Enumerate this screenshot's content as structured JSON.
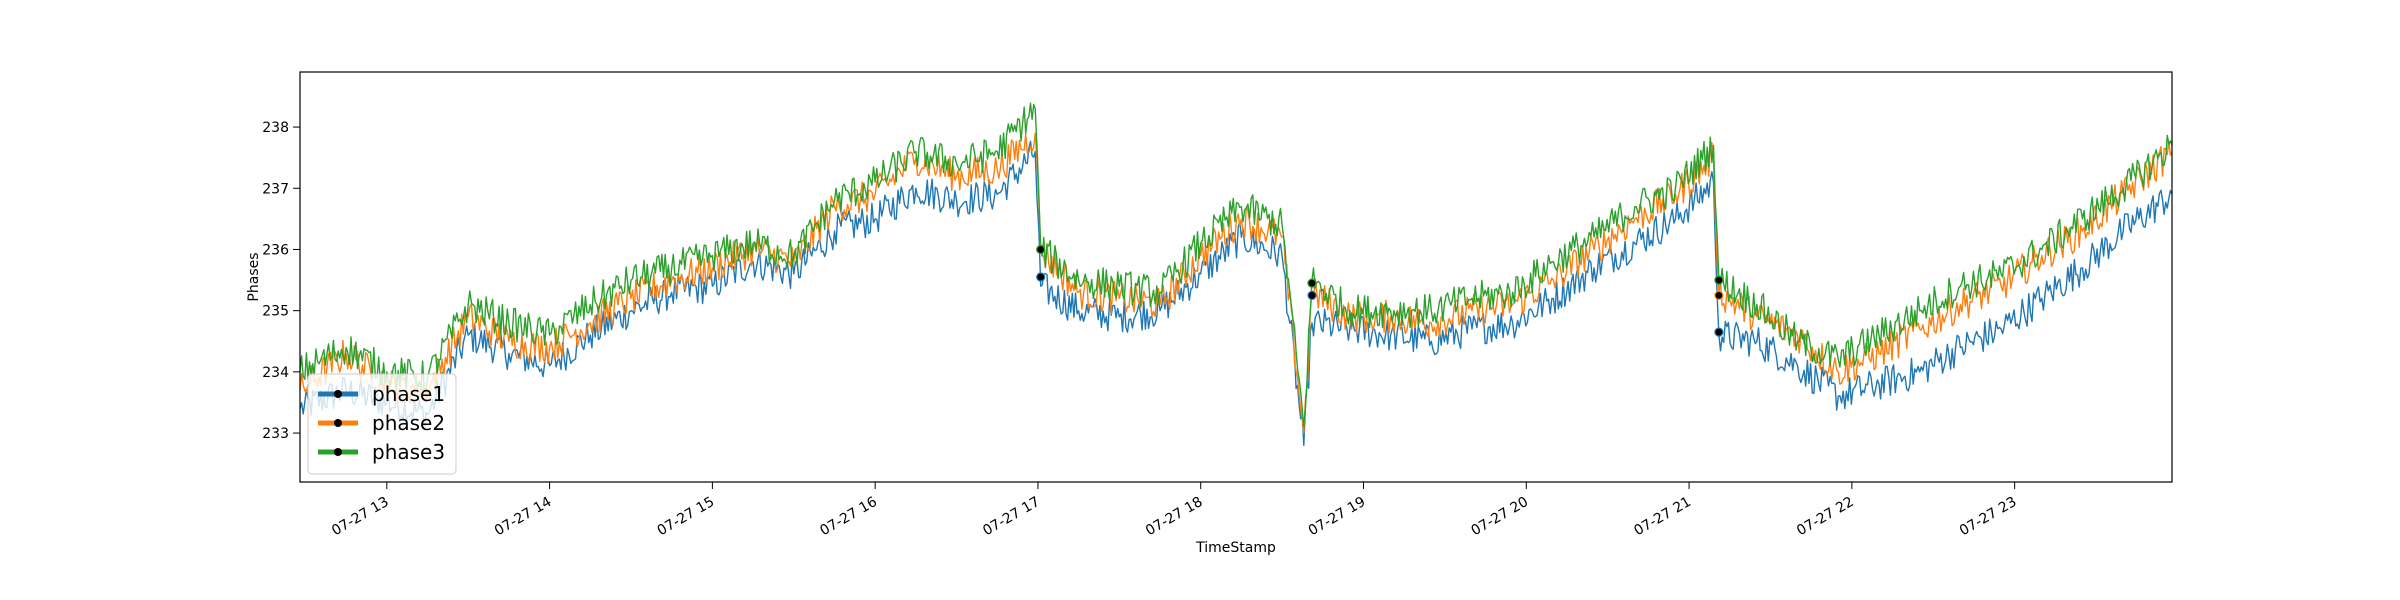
{
  "chart_data": {
    "type": "line",
    "title": "",
    "xlabel": "TimeStamp",
    "ylabel": "Phases",
    "xlim": [
      "2024-07-27 12:28",
      "2024-07-27 23:58"
    ],
    "ylim": [
      232.2,
      238.9
    ],
    "yticks": [
      233,
      234,
      235,
      236,
      237,
      238
    ],
    "xticks": [
      {
        "t": "2024-07-27 13:00",
        "label": "07-27 13"
      },
      {
        "t": "2024-07-27 14:00",
        "label": "07-27 14"
      },
      {
        "t": "2024-07-27 15:00",
        "label": "07-27 15"
      },
      {
        "t": "2024-07-27 16:00",
        "label": "07-27 16"
      },
      {
        "t": "2024-07-27 17:00",
        "label": "07-27 17"
      },
      {
        "t": "2024-07-27 18:00",
        "label": "07-27 18"
      },
      {
        "t": "2024-07-27 19:00",
        "label": "07-27 19"
      },
      {
        "t": "2024-07-27 20:00",
        "label": "07-27 20"
      },
      {
        "t": "2024-07-27 21:00",
        "label": "07-27 21"
      },
      {
        "t": "2024-07-27 22:00",
        "label": "07-27 22"
      },
      {
        "t": "2024-07-27 23:00",
        "label": "07-27 23"
      }
    ],
    "grid": false,
    "legend": "lower-left",
    "series": [
      {
        "name": "phase1",
        "color": "#1f77b4",
        "x": [
          "2024-07-27 12:28",
          "2024-07-27 12:45",
          "2024-07-27 13:00",
          "2024-07-27 13:15",
          "2024-07-27 13:30",
          "2024-07-27 13:45",
          "2024-07-27 14:00",
          "2024-07-27 14:15",
          "2024-07-27 14:30",
          "2024-07-27 14:45",
          "2024-07-27 15:00",
          "2024-07-27 15:15",
          "2024-07-27 15:30",
          "2024-07-27 15:45",
          "2024-07-27 16:00",
          "2024-07-27 16:15",
          "2024-07-27 16:30",
          "2024-07-27 16:45",
          "2024-07-27 16:59",
          "2024-07-27 17:01",
          "2024-07-27 17:15",
          "2024-07-27 17:30",
          "2024-07-27 17:45",
          "2024-07-27 18:00",
          "2024-07-27 18:15",
          "2024-07-27 18:30",
          "2024-07-27 18:38",
          "2024-07-27 18:41",
          "2024-07-27 18:55",
          "2024-07-27 19:10",
          "2024-07-27 19:25",
          "2024-07-27 19:40",
          "2024-07-27 19:55",
          "2024-07-27 20:10",
          "2024-07-27 20:25",
          "2024-07-27 20:40",
          "2024-07-27 20:55",
          "2024-07-27 21:09",
          "2024-07-27 21:11",
          "2024-07-27 21:25",
          "2024-07-27 21:40",
          "2024-07-27 21:55",
          "2024-07-27 22:10",
          "2024-07-27 22:25",
          "2024-07-27 22:40",
          "2024-07-27 22:55",
          "2024-07-27 23:10",
          "2024-07-27 23:25",
          "2024-07-27 23:40",
          "2024-07-27 23:58"
        ],
        "values": [
          233.4,
          233.7,
          233.5,
          233.3,
          234.6,
          234.3,
          234.1,
          234.6,
          235.0,
          235.3,
          235.4,
          235.8,
          235.6,
          236.3,
          236.5,
          237.0,
          236.8,
          236.9,
          237.6,
          235.4,
          235.0,
          234.9,
          235.0,
          235.6,
          236.2,
          235.9,
          232.8,
          234.8,
          234.7,
          234.6,
          234.5,
          234.7,
          234.8,
          235.2,
          235.7,
          236.1,
          236.5,
          237.1,
          234.6,
          234.5,
          234.1,
          233.6,
          233.8,
          234.0,
          234.4,
          234.7,
          235.2,
          235.7,
          236.3,
          236.9
        ]
      },
      {
        "name": "phase2",
        "color": "#ff7f0e",
        "x": [
          "2024-07-27 12:28",
          "2024-07-27 12:45",
          "2024-07-27 13:00",
          "2024-07-27 13:15",
          "2024-07-27 13:30",
          "2024-07-27 13:45",
          "2024-07-27 14:00",
          "2024-07-27 14:15",
          "2024-07-27 14:30",
          "2024-07-27 14:45",
          "2024-07-27 15:00",
          "2024-07-27 15:15",
          "2024-07-27 15:30",
          "2024-07-27 15:45",
          "2024-07-27 16:00",
          "2024-07-27 16:15",
          "2024-07-27 16:30",
          "2024-07-27 16:45",
          "2024-07-27 16:59",
          "2024-07-27 17:01",
          "2024-07-27 17:15",
          "2024-07-27 17:30",
          "2024-07-27 17:45",
          "2024-07-27 18:00",
          "2024-07-27 18:15",
          "2024-07-27 18:30",
          "2024-07-27 18:38",
          "2024-07-27 18:41",
          "2024-07-27 18:55",
          "2024-07-27 19:10",
          "2024-07-27 19:25",
          "2024-07-27 19:40",
          "2024-07-27 19:55",
          "2024-07-27 20:10",
          "2024-07-27 20:25",
          "2024-07-27 20:40",
          "2024-07-27 20:55",
          "2024-07-27 21:09",
          "2024-07-27 21:11",
          "2024-07-27 21:25",
          "2024-07-27 21:40",
          "2024-07-27 21:55",
          "2024-07-27 22:10",
          "2024-07-27 22:25",
          "2024-07-27 22:40",
          "2024-07-27 22:55",
          "2024-07-27 23:10",
          "2024-07-27 23:25",
          "2024-07-27 23:40",
          "2024-07-27 23:58"
        ],
        "values": [
          233.7,
          234.3,
          233.8,
          233.7,
          234.9,
          234.5,
          234.4,
          234.8,
          235.2,
          235.5,
          235.7,
          236.0,
          235.8,
          236.7,
          236.9,
          237.5,
          237.2,
          237.3,
          237.9,
          236.0,
          235.3,
          235.2,
          235.1,
          235.9,
          236.5,
          236.2,
          233.0,
          235.3,
          234.9,
          234.9,
          234.8,
          235.0,
          235.1,
          235.5,
          236.0,
          236.5,
          236.9,
          237.5,
          235.3,
          234.9,
          234.6,
          234.0,
          234.3,
          234.7,
          235.1,
          235.4,
          235.9,
          236.3,
          236.9,
          237.6
        ]
      },
      {
        "name": "phase3",
        "color": "#2ca02c",
        "x": [
          "2024-07-27 12:28",
          "2024-07-27 12:45",
          "2024-07-27 13:00",
          "2024-07-27 13:15",
          "2024-07-27 13:30",
          "2024-07-27 13:45",
          "2024-07-27 14:00",
          "2024-07-27 14:15",
          "2024-07-27 14:30",
          "2024-07-27 14:45",
          "2024-07-27 15:00",
          "2024-07-27 15:15",
          "2024-07-27 15:30",
          "2024-07-27 15:45",
          "2024-07-27 16:00",
          "2024-07-27 16:15",
          "2024-07-27 16:30",
          "2024-07-27 16:45",
          "2024-07-27 16:59",
          "2024-07-27 17:01",
          "2024-07-27 17:15",
          "2024-07-27 17:30",
          "2024-07-27 17:45",
          "2024-07-27 18:00",
          "2024-07-27 18:15",
          "2024-07-27 18:30",
          "2024-07-27 18:38",
          "2024-07-27 18:41",
          "2024-07-27 18:55",
          "2024-07-27 19:10",
          "2024-07-27 19:25",
          "2024-07-27 19:40",
          "2024-07-27 19:55",
          "2024-07-27 20:10",
          "2024-07-27 20:25",
          "2024-07-27 20:40",
          "2024-07-27 20:55",
          "2024-07-27 21:09",
          "2024-07-27 21:11",
          "2024-07-27 21:25",
          "2024-07-27 21:40",
          "2024-07-27 21:55",
          "2024-07-27 22:10",
          "2024-07-27 22:25",
          "2024-07-27 22:40",
          "2024-07-27 22:55",
          "2024-07-27 23:10",
          "2024-07-27 23:25",
          "2024-07-27 23:40",
          "2024-07-27 23:58"
        ],
        "values": [
          234.0,
          234.4,
          234.0,
          233.9,
          235.1,
          234.8,
          234.6,
          235.1,
          235.5,
          235.7,
          235.9,
          236.1,
          235.9,
          236.8,
          237.1,
          237.6,
          237.4,
          237.6,
          238.3,
          236.0,
          235.5,
          235.4,
          235.3,
          236.1,
          236.7,
          236.4,
          233.1,
          235.5,
          235.0,
          235.0,
          235.0,
          235.2,
          235.3,
          235.8,
          236.2,
          236.7,
          237.0,
          237.7,
          235.5,
          235.1,
          234.5,
          234.2,
          234.6,
          235.0,
          235.4,
          235.6,
          236.0,
          236.5,
          237.0,
          237.7
        ]
      }
    ],
    "markers": [
      {
        "t": "2024-07-27 17:01",
        "values": [
          235.55,
          236.0,
          236.0
        ]
      },
      {
        "t": "2024-07-27 18:41",
        "values": [
          235.25,
          235.45,
          235.45
        ]
      },
      {
        "t": "2024-07-27 21:11",
        "values": [
          234.65,
          235.25,
          235.5
        ]
      }
    ]
  }
}
